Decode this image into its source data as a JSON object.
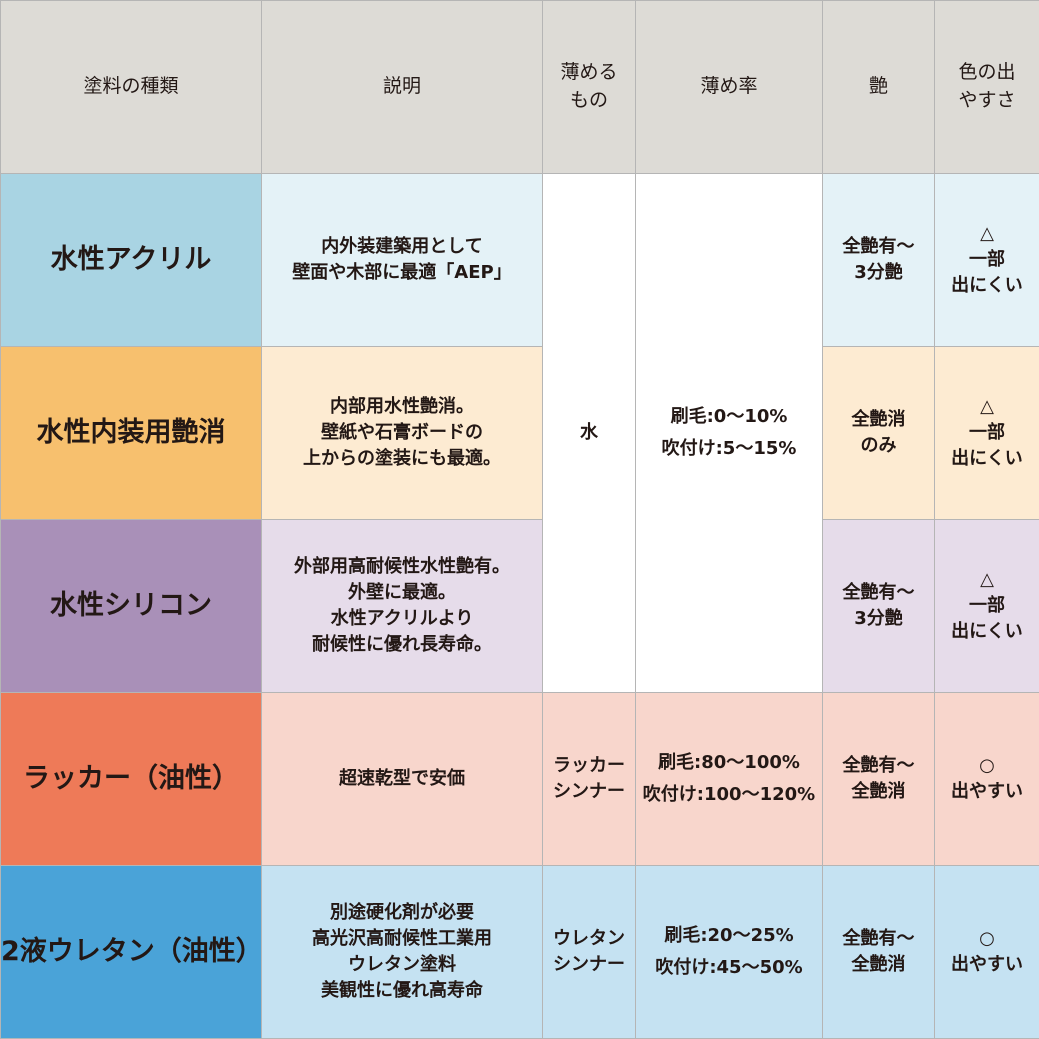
{
  "headers": [
    "塗料の種類",
    "説明",
    "薄めるもの",
    "薄め率",
    "艶",
    "色の出やすさ"
  ],
  "header_lines": {
    "thinner": [
      "薄める",
      "もの"
    ],
    "color": [
      "色の出",
      "やすさ"
    ]
  },
  "rows": [
    {
      "name": "水性アクリル",
      "desc": [
        "内外装建築用として",
        "壁面や木部に最適「AEP」"
      ],
      "gloss": [
        "全艶有～",
        "3分艶"
      ],
      "color": [
        "△",
        "一部",
        "出にくい"
      ]
    },
    {
      "name": "水性内装用艶消",
      "desc": [
        "内部用水性艶消。",
        "壁紙や石膏ボードの",
        "上からの塗装にも最適。"
      ],
      "gloss": [
        "全艶消",
        "のみ"
      ],
      "color": [
        "△",
        "一部",
        "出にくい"
      ]
    },
    {
      "name": "水性シリコン",
      "desc": [
        "外部用高耐候性水性艶有。",
        "外壁に最適。",
        "水性アクリルより",
        "耐候性に優れ長寿命。"
      ],
      "gloss": [
        "全艶有～",
        "3分艶"
      ],
      "color": [
        "△",
        "一部",
        "出にくい"
      ]
    },
    {
      "name": "ラッカー（油性）",
      "desc": [
        "超速乾型で安価"
      ],
      "thinner": [
        "ラッカー",
        "シンナー"
      ],
      "rate": [
        "刷毛:80～100%",
        "吹付け:100～120%"
      ],
      "gloss": [
        "全艶有～",
        "全艶消"
      ],
      "color": [
        "○",
        "出やすい"
      ]
    },
    {
      "name": "2液ウレタン（油性）",
      "desc": [
        "別途硬化剤が必要",
        "高光沢高耐候性工業用",
        "ウレタン塗料",
        "美観性に優れ高寿命"
      ],
      "thinner": [
        "ウレタン",
        "シンナー"
      ],
      "rate": [
        "刷毛:20～25%",
        "吹付け:45～50%"
      ],
      "gloss": [
        "全艶有～",
        "全艶消"
      ],
      "color": [
        "○",
        "出やすい"
      ]
    }
  ],
  "water_group": {
    "thinner": "水",
    "rate": [
      "刷毛:0～10%",
      "吹付け:5～15%"
    ]
  }
}
